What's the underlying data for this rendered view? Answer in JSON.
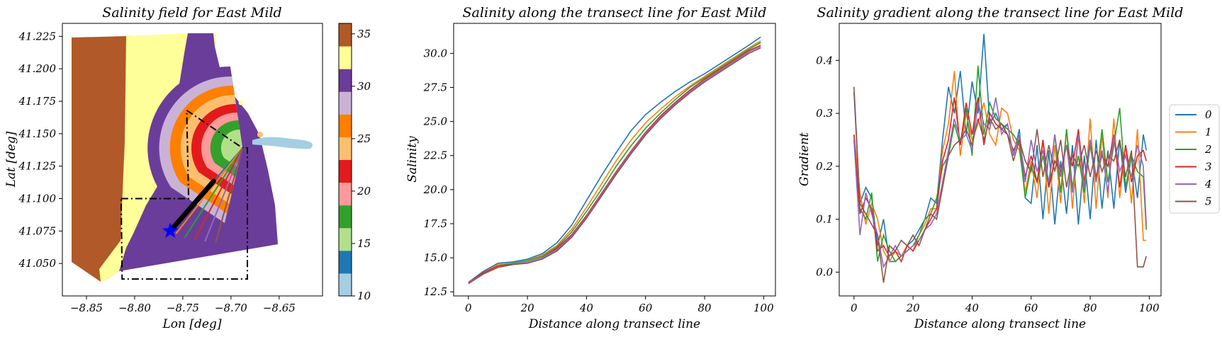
{
  "chart_data": [
    {
      "type": "scatter",
      "title": "Salinity field for East Mild",
      "xlabel": "Lon [deg]",
      "ylabel": "Lat [deg]",
      "xlim": [
        -8.875,
        -8.605
      ],
      "ylim": [
        41.025,
        41.235
      ],
      "xticks": [
        "−8.85",
        "−8.80",
        "−8.75",
        "−8.70",
        "−8.65"
      ],
      "xtick_values": [
        -8.85,
        -8.8,
        -8.75,
        -8.7,
        -8.65
      ],
      "yticks": [
        "41.050",
        "41.075",
        "41.100",
        "41.125",
        "41.150",
        "41.175",
        "41.200",
        "41.225"
      ],
      "ytick_values": [
        41.05,
        41.075,
        41.1,
        41.125,
        41.15,
        41.175,
        41.2,
        41.225
      ],
      "colorbar": {
        "range": [
          10,
          36
        ],
        "ticks": [
          "10",
          "15",
          "20",
          "25",
          "30",
          "35"
        ],
        "tick_values": [
          10,
          15,
          20,
          25,
          30,
          35
        ],
        "colors": [
          "#a6cee3",
          "#1f78b4",
          "#b2df8a",
          "#33a02c",
          "#fb9a99",
          "#e31a1c",
          "#fdbf6f",
          "#ff7f00",
          "#cab2d6",
          "#6a3d9a",
          "#ffff99",
          "#b15928"
        ]
      },
      "contour_bands": [
        {
          "salinity": 32,
          "color": "#6a3d9a"
        },
        {
          "salinity": 30,
          "color": "#cab2d6"
        },
        {
          "salinity": 28,
          "color": "#ff7f00"
        },
        {
          "salinity": 26,
          "color": "#fdbf6f"
        },
        {
          "salinity": 24,
          "color": "#e31a1c"
        },
        {
          "salinity": 21,
          "color": "#fb9a99"
        },
        {
          "salinity": 18,
          "color": "#33a02c"
        },
        {
          "salinity": 16,
          "color": "#b2df8a"
        }
      ],
      "river_plume": {
        "color": "#a6cee3",
        "salinity": 10
      },
      "transect_origin": {
        "lon": -8.688,
        "lat": 41.139
      },
      "transect_end": {
        "lon": -8.763,
        "lat": 41.075
      },
      "transect_ends_lon": [
        -8.763,
        -8.757,
        -8.748,
        -8.738,
        -8.727,
        -8.716
      ],
      "transect_ends_lat": [
        41.075,
        41.073,
        41.07,
        41.068,
        41.067,
        41.066
      ],
      "marker": {
        "shape": "star",
        "lon": -8.763,
        "lat": 41.075,
        "color": "#0000ff"
      },
      "polygon_lon": [
        -8.814,
        -8.744,
        -8.746,
        -8.688,
        -8.683,
        -8.683,
        -8.813,
        -8.814
      ],
      "polygon_lat": [
        41.1,
        41.1,
        41.168,
        41.139,
        41.139,
        41.038,
        41.038,
        41.1
      ],
      "grid": false
    },
    {
      "type": "line",
      "title": "Salinity along the transect line for East Mild",
      "xlabel": "Distance along transect line",
      "ylabel": "Salinity",
      "xlim": [
        -5,
        104
      ],
      "ylim": [
        12.2,
        32.2
      ],
      "xticks": [
        "0",
        "20",
        "40",
        "60",
        "80",
        "100"
      ],
      "xtick_values": [
        0,
        20,
        40,
        60,
        80,
        100
      ],
      "yticks": [
        "12.5",
        "15.0",
        "17.5",
        "20.0",
        "22.5",
        "25.0",
        "27.5",
        "30.0"
      ],
      "ytick_values": [
        12.5,
        15,
        17.5,
        20,
        22.5,
        25,
        27.5,
        30
      ],
      "x": [
        0,
        5,
        10,
        15,
        20,
        25,
        30,
        35,
        40,
        45,
        50,
        55,
        60,
        65,
        70,
        75,
        80,
        85,
        90,
        95,
        99
      ],
      "series": [
        {
          "name": "0",
          "color": "#1f77b4",
          "values": [
            13.2,
            14.0,
            14.6,
            14.7,
            14.9,
            15.3,
            16.1,
            17.4,
            19.2,
            21.0,
            22.7,
            24.3,
            25.5,
            26.4,
            27.2,
            27.9,
            28.5,
            29.2,
            29.9,
            30.6,
            31.2
          ]
        },
        {
          "name": "1",
          "color": "#ff7f0e",
          "values": [
            13.2,
            13.9,
            14.5,
            14.6,
            14.8,
            15.2,
            15.9,
            17.1,
            18.7,
            20.4,
            22.1,
            23.6,
            24.9,
            25.9,
            26.8,
            27.6,
            28.3,
            29.0,
            29.7,
            30.4,
            30.9
          ]
        },
        {
          "name": "2",
          "color": "#2ca02c",
          "values": [
            13.2,
            13.9,
            14.4,
            14.6,
            14.8,
            15.1,
            15.8,
            16.9,
            18.4,
            20.0,
            21.7,
            23.2,
            24.5,
            25.6,
            26.6,
            27.5,
            28.2,
            28.9,
            29.6,
            30.3,
            30.8
          ]
        },
        {
          "name": "3",
          "color": "#d62728",
          "values": [
            13.2,
            13.9,
            14.4,
            14.5,
            14.7,
            15.0,
            15.7,
            16.7,
            18.1,
            19.7,
            21.3,
            22.8,
            24.2,
            25.4,
            26.4,
            27.3,
            28.1,
            28.8,
            29.5,
            30.2,
            30.6
          ]
        },
        {
          "name": "4",
          "color": "#9467bd",
          "values": [
            13.2,
            13.8,
            14.3,
            14.5,
            14.7,
            15.0,
            15.6,
            16.6,
            18.0,
            19.6,
            21.2,
            22.7,
            24.1,
            25.3,
            26.3,
            27.2,
            28.0,
            28.7,
            29.4,
            30.1,
            30.5
          ]
        },
        {
          "name": "5",
          "color": "#8c564b",
          "values": [
            13.1,
            13.8,
            14.3,
            14.5,
            14.6,
            14.9,
            15.5,
            16.5,
            17.9,
            19.5,
            21.1,
            22.6,
            24.0,
            25.2,
            26.2,
            27.1,
            27.9,
            28.6,
            29.3,
            30.0,
            30.4
          ]
        }
      ],
      "grid": false
    },
    {
      "type": "line",
      "title": "Salinity gradient along the transect line for East Mild",
      "xlabel": "Distance along transect line",
      "ylabel": "Gradient",
      "xlim": [
        -5,
        104
      ],
      "ylim": [
        -0.045,
        0.47
      ],
      "xticks": [
        "0",
        "20",
        "40",
        "60",
        "80",
        "100"
      ],
      "xtick_values": [
        0,
        20,
        40,
        60,
        80,
        100
      ],
      "yticks": [
        "0.0",
        "0.1",
        "0.2",
        "0.3",
        "0.4"
      ],
      "ytick_values": [
        0.0,
        0.1,
        0.2,
        0.3,
        0.4
      ],
      "x": [
        0,
        2,
        4,
        6,
        8,
        10,
        12,
        14,
        16,
        18,
        20,
        22,
        24,
        26,
        28,
        30,
        32,
        34,
        36,
        38,
        40,
        42,
        44,
        46,
        48,
        50,
        52,
        54,
        56,
        58,
        60,
        62,
        64,
        66,
        68,
        70,
        72,
        74,
        76,
        78,
        80,
        82,
        84,
        86,
        88,
        90,
        92,
        94,
        96,
        98,
        99
      ],
      "series": [
        {
          "name": "0",
          "color": "#1f77b4",
          "values": [
            0.34,
            0.13,
            0.16,
            0.14,
            0.05,
            0.1,
            0.02,
            0.02,
            0.03,
            0.05,
            0.06,
            0.08,
            0.1,
            0.14,
            0.13,
            0.25,
            0.35,
            0.3,
            0.38,
            0.26,
            0.36,
            0.3,
            0.45,
            0.28,
            0.3,
            0.27,
            0.28,
            0.22,
            0.27,
            0.14,
            0.13,
            0.24,
            0.1,
            0.23,
            0.09,
            0.21,
            0.11,
            0.24,
            0.09,
            0.22,
            0.1,
            0.25,
            0.12,
            0.23,
            0.12,
            0.25,
            0.15,
            0.22,
            0.14,
            0.26,
            0.23
          ]
        },
        {
          "name": "1",
          "color": "#ff7f0e",
          "values": [
            0.26,
            0.15,
            0.09,
            0.13,
            0.1,
            0.04,
            0.02,
            0.04,
            0.03,
            0.05,
            0.04,
            0.07,
            0.09,
            0.12,
            0.12,
            0.23,
            0.28,
            0.38,
            0.22,
            0.3,
            0.25,
            0.28,
            0.32,
            0.26,
            0.24,
            0.31,
            0.3,
            0.25,
            0.23,
            0.15,
            0.21,
            0.14,
            0.25,
            0.11,
            0.24,
            0.13,
            0.27,
            0.12,
            0.26,
            0.13,
            0.29,
            0.12,
            0.26,
            0.14,
            0.29,
            0.14,
            0.24,
            0.13,
            0.27,
            0.06,
            0.06
          ]
        },
        {
          "name": "2",
          "color": "#2ca02c",
          "values": [
            0.25,
            0.12,
            0.1,
            0.15,
            0.02,
            0.07,
            0.04,
            0.02,
            0.03,
            0.04,
            0.05,
            0.07,
            0.1,
            0.11,
            0.14,
            0.2,
            0.22,
            0.28,
            0.24,
            0.31,
            0.22,
            0.39,
            0.26,
            0.32,
            0.29,
            0.28,
            0.27,
            0.26,
            0.24,
            0.14,
            0.2,
            0.17,
            0.22,
            0.16,
            0.26,
            0.15,
            0.27,
            0.16,
            0.22,
            0.15,
            0.24,
            0.17,
            0.27,
            0.17,
            0.24,
            0.31,
            0.16,
            0.22,
            0.19,
            0.18,
            0.08
          ]
        },
        {
          "name": "3",
          "color": "#d62728",
          "values": [
            0.26,
            0.11,
            0.14,
            0.12,
            0.04,
            0.05,
            0.03,
            0.04,
            0.02,
            0.05,
            0.04,
            0.06,
            0.08,
            0.1,
            0.12,
            0.21,
            0.25,
            0.33,
            0.24,
            0.32,
            0.26,
            0.33,
            0.24,
            0.3,
            0.28,
            0.27,
            0.26,
            0.23,
            0.25,
            0.18,
            0.22,
            0.17,
            0.25,
            0.16,
            0.21,
            0.19,
            0.24,
            0.2,
            0.27,
            0.17,
            0.25,
            0.18,
            0.22,
            0.2,
            0.26,
            0.16,
            0.24,
            0.17,
            0.22,
            0.23,
            0.21
          ]
        },
        {
          "name": "4",
          "color": "#9467bd",
          "values": [
            0.25,
            0.07,
            0.15,
            0.11,
            0.07,
            0.01,
            0.03,
            0.05,
            0.03,
            0.04,
            0.05,
            0.06,
            0.08,
            0.09,
            0.11,
            0.17,
            0.23,
            0.29,
            0.25,
            0.26,
            0.23,
            0.32,
            0.28,
            0.27,
            0.33,
            0.26,
            0.28,
            0.22,
            0.26,
            0.17,
            0.25,
            0.19,
            0.23,
            0.17,
            0.26,
            0.18,
            0.24,
            0.15,
            0.26,
            0.16,
            0.25,
            0.17,
            0.23,
            0.15,
            0.26,
            0.19,
            0.22,
            0.18,
            0.24,
            0.2,
            0.09
          ]
        },
        {
          "name": "5",
          "color": "#8c564b",
          "values": [
            0.35,
            0.13,
            0.11,
            0.09,
            0.07,
            -0.02,
            0.05,
            0.04,
            0.06,
            0.05,
            0.07,
            0.05,
            0.08,
            0.11,
            0.1,
            0.16,
            0.22,
            0.24,
            0.25,
            0.27,
            0.24,
            0.29,
            0.25,
            0.29,
            0.27,
            0.28,
            0.26,
            0.21,
            0.25,
            0.21,
            0.19,
            0.27,
            0.18,
            0.24,
            0.19,
            0.25,
            0.16,
            0.22,
            0.2,
            0.24,
            0.18,
            0.23,
            0.19,
            0.22,
            0.21,
            0.25,
            0.18,
            0.23,
            0.01,
            0.01,
            0.03
          ]
        }
      ],
      "legend": {
        "placement": "outside-right",
        "entries": [
          "0",
          "1",
          "2",
          "3",
          "4",
          "5"
        ]
      },
      "grid": false
    }
  ]
}
